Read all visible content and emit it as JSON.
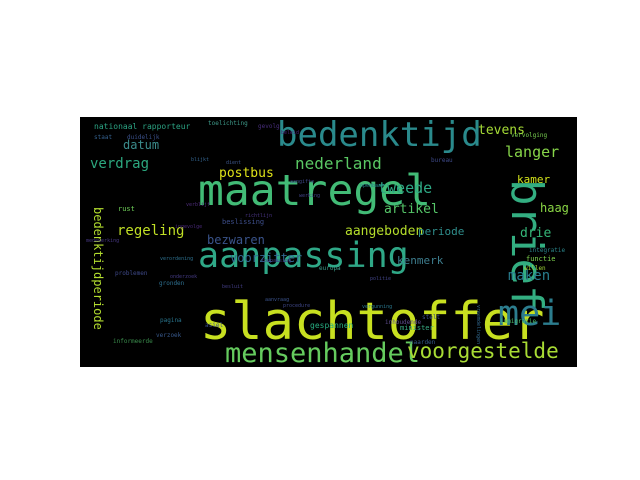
{
  "wordcloud": {
    "words": [
      {
        "text": "slachtoffer",
        "color": "#c8e020"
      },
      {
        "text": "maatregel",
        "color": "#42bb76"
      },
      {
        "text": "aanpassing",
        "color": "#2fa887"
      },
      {
        "text": "bedenktijd",
        "color": "#2a8a8c"
      },
      {
        "text": "brief",
        "color": "#33ae81"
      },
      {
        "text": "mei",
        "color": "#2c7d8e"
      },
      {
        "text": "mensenhandel",
        "color": "#65cb5e"
      },
      {
        "text": "voorgestelde",
        "color": "#a8db34"
      },
      {
        "text": "bedenktijdperiode",
        "color": "#b3dd2f"
      },
      {
        "text": "regeling",
        "color": "#c0df25"
      },
      {
        "text": "verdrag",
        "color": "#2ca87f"
      },
      {
        "text": "nederland",
        "color": "#5ac864"
      },
      {
        "text": "postbus",
        "color": "#dfe318"
      },
      {
        "text": "datum",
        "color": "#3b8c8c"
      },
      {
        "text": "tweede",
        "color": "#2ea985"
      },
      {
        "text": "artikel",
        "color": "#55c568"
      },
      {
        "text": "aangeboden",
        "color": "#b5de2b"
      },
      {
        "text": "bezwaren",
        "color": "#3a548c"
      },
      {
        "text": "voorzitter",
        "color": "#31688e"
      },
      {
        "text": "periode",
        "color": "#2f8e8c"
      },
      {
        "text": "kenmerk",
        "color": "#3d7d8e"
      },
      {
        "text": "maken",
        "color": "#287c8e"
      },
      {
        "text": "drie",
        "color": "#35b779"
      },
      {
        "text": "haag",
        "color": "#8ad645"
      },
      {
        "text": "kamer",
        "color": "#d2e21b"
      },
      {
        "text": "langer",
        "color": "#87d549"
      },
      {
        "text": "tevens",
        "color": "#a5db36"
      },
      {
        "text": "nationaal rapporteur",
        "color": "#2ba383"
      },
      {
        "text": "toelichting",
        "color": "#3e9b8a"
      },
      {
        "text": "beslissing",
        "color": "#3d4e8a"
      },
      {
        "text": "informeerde",
        "color": "#3a8c4c"
      },
      {
        "text": "gespannen",
        "color": "#27ad81"
      },
      {
        "text": "immigratie",
        "color": "#4fbf6f"
      },
      {
        "text": "minister",
        "color": "#38aa82"
      },
      {
        "text": "inhoudende",
        "color": "#5e4c8c"
      },
      {
        "text": "functie",
        "color": "#7fd34e"
      },
      {
        "text": "integratie",
        "color": "#2b868c"
      },
      {
        "text": "willen",
        "color": "#a2da37"
      },
      {
        "text": "europa",
        "color": "#3b9e8a"
      },
      {
        "text": "pagina",
        "color": "#2a768e"
      },
      {
        "text": "asiel",
        "color": "#3c508b"
      },
      {
        "text": "bureau",
        "color": "#3e4a89"
      },
      {
        "text": "vervolging",
        "color": "#7ad151"
      },
      {
        "text": "blijkt",
        "color": "#33638d"
      },
      {
        "text": "dient",
        "color": "#3d568a"
      },
      {
        "text": "verblijf",
        "color": "#4d2d7a"
      },
      {
        "text": "rust",
        "color": "#6ece58"
      },
      {
        "text": "medewerking",
        "color": "#453781"
      },
      {
        "text": "besluit",
        "color": "#433e85"
      },
      {
        "text": "verordening",
        "color": "#2d708e"
      },
      {
        "text": "aanvraag",
        "color": "#3b528b"
      },
      {
        "text": "openbaar",
        "color": "#26828e"
      },
      {
        "text": "staat",
        "color": "#34608d"
      },
      {
        "text": "duidelijk",
        "color": "#3b518b"
      },
      {
        "text": "gevolg",
        "color": "#472d7b"
      },
      {
        "text": "beleid",
        "color": "#482475"
      },
      {
        "text": "aangifte",
        "color": "#3f4889"
      },
      {
        "text": "richtlijn",
        "color": "#46337f"
      },
      {
        "text": "werking",
        "color": "#404387"
      },
      {
        "text": "toepassing",
        "color": "#433d84"
      },
      {
        "text": "stelt",
        "color": "#3c4f8a"
      },
      {
        "text": "naarden",
        "color": "#365c8d"
      },
      {
        "text": "vreemdelingen",
        "color": "#31688e"
      },
      {
        "text": "problemen",
        "color": "#3e4989"
      },
      {
        "text": "verzoek",
        "color": "#38598c"
      },
      {
        "text": "gronden",
        "color": "#2e6f8e"
      },
      {
        "text": "onderzoek",
        "color": "#443a83"
      },
      {
        "text": "ingevolge",
        "color": "#482878"
      },
      {
        "text": "procedure",
        "color": "#3f4788"
      },
      {
        "text": "politie",
        "color": "#414487"
      },
      {
        "text": "vergunning",
        "color": "#2a788e"
      }
    ]
  }
}
